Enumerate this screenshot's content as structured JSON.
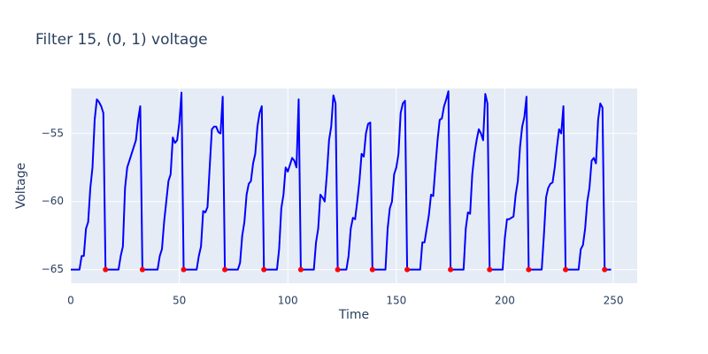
{
  "chart_data": {
    "type": "line",
    "title": "Filter 15, (0, 1) voltage",
    "x_label": "Time",
    "y_label": "Voltage",
    "xlim": [
      0,
      261
    ],
    "xticks": [
      0,
      50,
      100,
      150,
      200,
      250
    ],
    "ylim": [
      -66,
      -51.7
    ],
    "yticks": [
      {
        "value": -65,
        "label": "−65"
      },
      {
        "value": -60,
        "label": "−60"
      },
      {
        "value": -55,
        "label": "−55"
      }
    ],
    "grid": true,
    "series": [
      {
        "color": "#0000ff",
        "mode": "lines",
        "x": [
          0,
          4,
          5,
          6,
          7,
          8,
          9,
          10,
          11,
          12,
          13,
          14,
          15,
          16,
          22,
          23,
          24,
          25,
          26,
          27,
          29,
          30,
          31,
          32,
          33,
          40,
          41,
          42,
          43,
          44,
          45,
          46,
          47,
          48,
          49,
          50,
          51,
          52,
          58,
          59,
          60,
          61,
          62,
          63,
          64,
          65,
          66,
          67,
          68,
          69,
          70,
          71,
          77,
          78,
          79,
          80,
          81,
          82,
          83,
          84,
          85,
          86,
          87,
          88,
          89,
          95,
          96,
          97,
          98,
          99,
          100,
          101,
          102,
          103,
          104,
          105,
          106,
          112,
          113,
          114,
          115,
          116,
          117,
          118,
          119,
          120,
          121,
          122,
          123,
          127,
          128,
          129,
          130,
          131,
          132,
          133,
          134,
          135,
          136,
          137,
          138,
          139,
          145,
          146,
          147,
          148,
          149,
          150,
          151,
          152,
          153,
          154,
          155,
          161,
          162,
          163,
          164,
          165,
          166,
          167,
          168,
          169,
          170,
          171,
          172,
          173,
          174,
          175,
          181,
          182,
          183,
          184,
          185,
          186,
          187,
          188,
          189,
          190,
          191,
          192,
          193,
          199,
          200,
          201,
          202,
          203,
          204,
          205,
          206,
          207,
          208,
          209,
          210,
          211,
          217,
          218,
          219,
          220,
          221,
          222,
          223,
          224,
          225,
          226,
          227,
          228,
          234,
          235,
          236,
          237,
          238,
          239,
          240,
          241,
          242,
          243,
          244,
          245,
          246,
          249
        ],
        "values": [
          -65,
          -65,
          -64,
          -64,
          -62,
          -61.5,
          -59,
          -57.5,
          -54,
          -52.5,
          -52.7,
          -53,
          -53.5,
          -65,
          -65,
          -64,
          -63.3,
          -59,
          -57.5,
          -57,
          -56,
          -55.5,
          -54,
          -53,
          -65,
          -65,
          -64,
          -63.5,
          -61.5,
          -60,
          -58.5,
          -58,
          -55.3,
          -55.7,
          -55.5,
          -54.2,
          -52,
          -65,
          -65,
          -64,
          -63.3,
          -60.7,
          -60.8,
          -60.4,
          -57.5,
          -54.7,
          -54.5,
          -54.5,
          -54.9,
          -55,
          -52.3,
          -65,
          -65,
          -64.5,
          -62.5,
          -61.5,
          -59.5,
          -58.7,
          -58.5,
          -57.2,
          -56.5,
          -54.5,
          -53.5,
          -53,
          -65,
          -65,
          -63.5,
          -60.5,
          -59.5,
          -57.5,
          -57.8,
          -57.3,
          -56.8,
          -57,
          -57.5,
          -52.5,
          -65,
          -65,
          -63,
          -62,
          -59.5,
          -59.7,
          -60,
          -58,
          -55.5,
          -54.5,
          -52.2,
          -52.8,
          -65,
          -65,
          -64,
          -62,
          -61.2,
          -61.3,
          -60,
          -58.5,
          -56.5,
          -56.7,
          -55,
          -54.3,
          -54.2,
          -65,
          -65,
          -62,
          -60.5,
          -60,
          -58,
          -57.5,
          -56.5,
          -53.5,
          -52.8,
          -52.6,
          -65,
          -65,
          -63,
          -63,
          -62,
          -61,
          -59.5,
          -59.6,
          -57.5,
          -55.5,
          -54,
          -53.9,
          -53,
          -52.5,
          -51.9,
          -65,
          -65,
          -62,
          -60.8,
          -60.9,
          -58,
          -56.5,
          -55.5,
          -54.7,
          -55,
          -55.5,
          -52.1,
          -52.8,
          -65,
          -65,
          -62.7,
          -61.3,
          -61.3,
          -61.2,
          -61.1,
          -59.5,
          -58.5,
          -56,
          -54.5,
          -53.8,
          -52.3,
          -65,
          -65,
          -62.5,
          -59.7,
          -59,
          -58.7,
          -58.6,
          -57.5,
          -56,
          -54.7,
          -55,
          -53,
          -65,
          -65,
          -63.5,
          -63.2,
          -62,
          -60,
          -59,
          -57,
          -56.8,
          -57.2,
          -54,
          -52.8,
          -53.1,
          -65,
          -65
        ]
      },
      {
        "color": "#ff0000",
        "mode": "markers",
        "x": [
          16,
          33,
          52,
          71,
          89,
          106,
          123,
          139,
          155,
          175,
          193,
          211,
          228,
          246
        ],
        "values": [
          -65,
          -65,
          -65,
          -65,
          -65,
          -65,
          -65,
          -65,
          -65,
          -65,
          -65,
          -65,
          -65,
          -65
        ]
      }
    ]
  }
}
